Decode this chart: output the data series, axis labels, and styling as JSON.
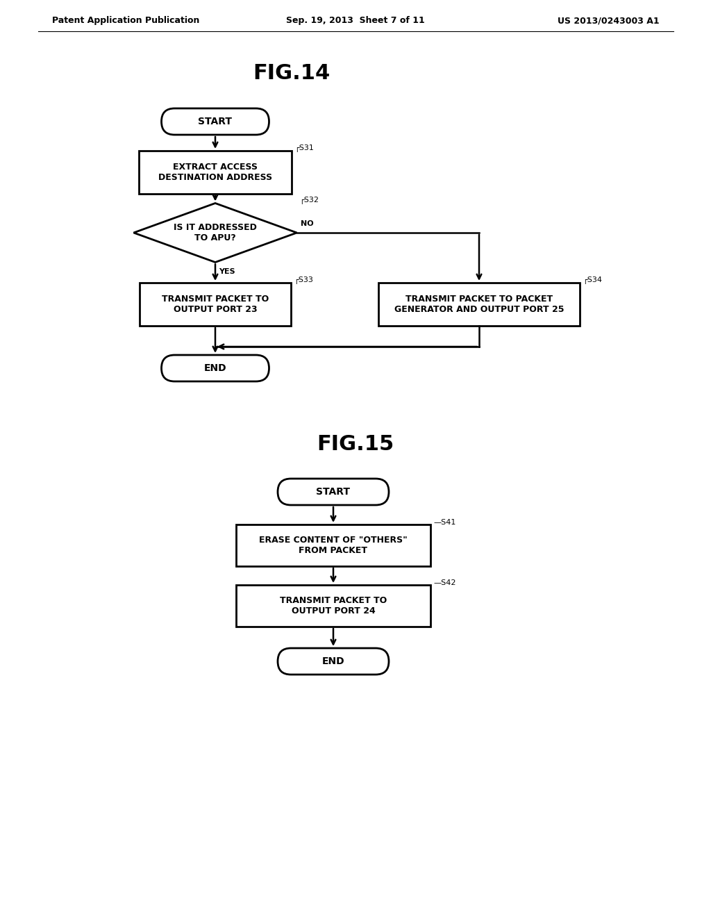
{
  "bg_color": "#ffffff",
  "header_left": "Patent Application Publication",
  "header_center": "Sep. 19, 2013  Sheet 7 of 11",
  "header_right": "US 2013/0243003 A1",
  "fig14_title": "FIG.14",
  "fig15_title": "FIG.15",
  "text_color": "#000000",
  "line_color": "#000000"
}
